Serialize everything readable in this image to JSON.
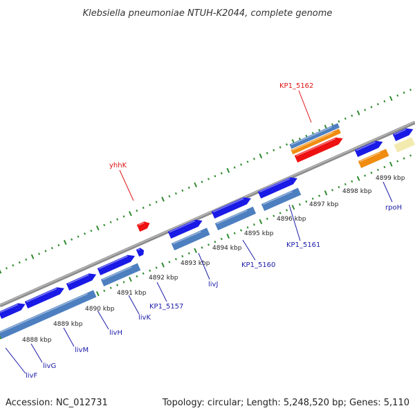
{
  "title": "Klebsiella pneumoniae NTUH-K2044, complete genome",
  "footer": {
    "accession": "Accession: NC_012731",
    "summary": "Topology: circular; Length: 5,248,520 bp; Genes: 5,110"
  },
  "colors": {
    "backbone": "#8c8c8c",
    "tick": "#2e8b2e",
    "blue_gene": "#1a1ae6",
    "steel_gene": "#4d7fc0",
    "orange_gene": "#f08c10",
    "red_gene": "#ee1111",
    "pale_gene": "#f3eab0",
    "label_blue": "#1a1aa8",
    "label_red": "#dd1111"
  },
  "kbp_labels": [
    "4888 kbp",
    "4889 kbp",
    "4890 kbp",
    "4891 kbp",
    "4892 kbp",
    "4893 kbp",
    "4894 kbp",
    "4895 kbp",
    "4896 kbp",
    "4897 kbp",
    "4898 kbp",
    "4899 kbp"
  ],
  "gene_labels": [
    {
      "text": "livF",
      "color": "blue"
    },
    {
      "text": "livG",
      "color": "blue"
    },
    {
      "text": "livM",
      "color": "blue"
    },
    {
      "text": "livH",
      "color": "blue"
    },
    {
      "text": "livK",
      "color": "blue"
    },
    {
      "text": "KP1_5157",
      "color": "blue"
    },
    {
      "text": "livJ",
      "color": "blue"
    },
    {
      "text": "KP1_5160",
      "color": "blue"
    },
    {
      "text": "KP1_5161",
      "color": "blue"
    },
    {
      "text": "rpoH",
      "color": "blue"
    },
    {
      "text": "yhhK",
      "color": "red"
    },
    {
      "text": "KP1_5162",
      "color": "red"
    }
  ]
}
